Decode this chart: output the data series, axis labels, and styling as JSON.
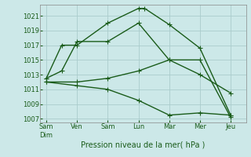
{
  "xlabel": "Pression niveau de la mer( hPa )",
  "xtick_labels": [
    "Sam\nDim",
    "Ven",
    "Sam",
    "Lun",
    "Mar",
    "Mer",
    "Jeu"
  ],
  "xtick_positions": [
    0,
    1,
    2,
    3,
    4,
    5,
    6
  ],
  "ylim": [
    1006.5,
    1022.5
  ],
  "yticks": [
    1007,
    1009,
    1011,
    1013,
    1015,
    1017,
    1019,
    1021
  ],
  "bg_color": "#cce8e8",
  "grid_color": "#aacccc",
  "line_color": "#1a5c1a",
  "lines": [
    {
      "x": [
        0,
        0.5,
        1,
        2,
        3,
        3.2,
        4,
        5,
        6
      ],
      "y": [
        1012.5,
        1017.0,
        1017.0,
        1020.0,
        1022.0,
        1022.0,
        1019.8,
        1016.6,
        1007.5
      ]
    },
    {
      "x": [
        0,
        0.5,
        1,
        2,
        3,
        4,
        5,
        6
      ],
      "y": [
        1012.5,
        1013.5,
        1017.5,
        1017.5,
        1020.0,
        1015.0,
        1015.0,
        1007.2
      ]
    },
    {
      "x": [
        0,
        1,
        2,
        3,
        4,
        5,
        6
      ],
      "y": [
        1012.0,
        1012.0,
        1012.5,
        1013.5,
        1015.0,
        1013.0,
        1010.5
      ]
    },
    {
      "x": [
        0,
        1,
        2,
        3,
        4,
        5,
        6
      ],
      "y": [
        1012.0,
        1011.5,
        1011.0,
        1009.5,
        1007.5,
        1007.8,
        1007.5
      ]
    }
  ],
  "marker": "+",
  "markersize": 4,
  "linewidth": 1.0
}
